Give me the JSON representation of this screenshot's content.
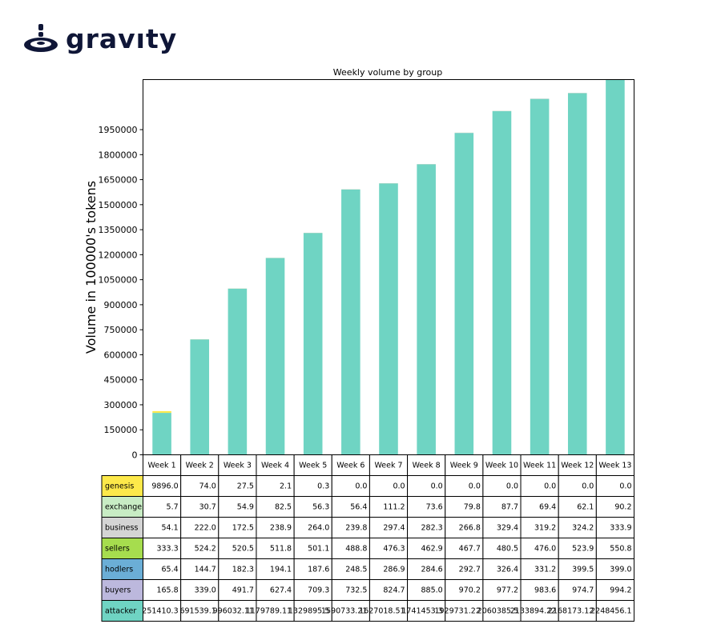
{
  "logo": {
    "text": "gravıty",
    "icon": "gravity-logo-icon"
  },
  "colors": {
    "attacker": "#6fd4c3",
    "genesis": "#fde94a",
    "grid": "#000000"
  },
  "chart_data": {
    "type": "bar",
    "title": "Weekly volume by group",
    "ylabel": "Volume in 100000's tokens",
    "xlabel": "",
    "ylim": [
      0,
      2250000
    ],
    "yticks": [
      0,
      150000,
      300000,
      450000,
      600000,
      750000,
      900000,
      1050000,
      1200000,
      1350000,
      1500000,
      1650000,
      1800000,
      1950000
    ],
    "categories": [
      "Week 1",
      "Week 2",
      "Week 3",
      "Week 4",
      "Week 5",
      "Week 6",
      "Week 7",
      "Week 8",
      "Week 9",
      "Week 10",
      "Week 11",
      "Week 12",
      "Week 13"
    ],
    "series": [
      {
        "name": "genesis",
        "color": "#fde94a",
        "values": [
          9896.0,
          74.0,
          27.5,
          2.1,
          0.3,
          0.0,
          0.0,
          0.0,
          0.0,
          0.0,
          0.0,
          0.0,
          0.0
        ]
      },
      {
        "name": "exchange",
        "color": "#c8ecc4",
        "values": [
          5.7,
          30.7,
          54.9,
          82.5,
          56.3,
          56.4,
          111.2,
          73.6,
          79.8,
          87.7,
          69.4,
          62.1,
          90.2
        ]
      },
      {
        "name": "business",
        "color": "#d4d4d4",
        "values": [
          54.1,
          222.0,
          172.5,
          238.9,
          264.0,
          239.8,
          297.4,
          282.3,
          266.8,
          329.4,
          319.2,
          324.2,
          333.9
        ]
      },
      {
        "name": "sellers",
        "color": "#a6dd4e",
        "values": [
          333.3,
          524.2,
          520.5,
          511.8,
          501.1,
          488.8,
          476.3,
          462.9,
          467.7,
          480.5,
          476.0,
          523.9,
          550.8
        ]
      },
      {
        "name": "hodlers",
        "color": "#6baed6",
        "values": [
          65.4,
          144.7,
          182.3,
          194.1,
          187.6,
          248.5,
          286.9,
          284.6,
          292.7,
          326.4,
          331.2,
          399.5,
          399.0
        ]
      },
      {
        "name": "buyers",
        "color": "#bcb8dd",
        "values": [
          165.8,
          339.0,
          491.7,
          627.4,
          709.3,
          732.5,
          824.7,
          885.0,
          970.2,
          977.2,
          983.6,
          974.7,
          994.2
        ]
      },
      {
        "name": "attacker",
        "color": "#6fd4c3",
        "values": [
          251410.3,
          691539.1,
          996032.11,
          1179789.11,
          1329895.5,
          1590733.21,
          1627018.51,
          1741453.3,
          1929731.22,
          2060385.5,
          2133894.22,
          2168173.12,
          2248456.1
        ]
      }
    ],
    "table_cells": [
      [
        "9896.0",
        "74.0",
        "27.5",
        "2.1",
        "0.3",
        "0.0",
        "0.0",
        "0.0",
        "0.0",
        "0.0",
        "0.0",
        "0.0",
        "0.0"
      ],
      [
        "5.7",
        "30.7",
        "54.9",
        "82.5",
        "56.3",
        "56.4",
        "111.2",
        "73.6",
        "79.8",
        "87.7",
        "69.4",
        "62.1",
        "90.2"
      ],
      [
        "54.1",
        "222.0",
        "172.5",
        "238.9",
        "264.0",
        "239.8",
        "297.4",
        "282.3",
        "266.8",
        "329.4",
        "319.2",
        "324.2",
        "333.9"
      ],
      [
        "333.3",
        "524.2",
        "520.5",
        "511.8",
        "501.1",
        "488.8",
        "476.3",
        "462.9",
        "467.7",
        "480.5",
        "476.0",
        "523.9",
        "550.8"
      ],
      [
        "65.4",
        "144.7",
        "182.3",
        "194.1",
        "187.6",
        "248.5",
        "286.9",
        "284.6",
        "292.7",
        "326.4",
        "331.2",
        "399.5",
        "399.0"
      ],
      [
        "165.8",
        "339.0",
        "491.7",
        "627.4",
        "709.3",
        "732.5",
        "824.7",
        "885.0",
        "970.2",
        "977.2",
        "983.6",
        "974.7",
        "994.2"
      ],
      [
        "251410.3",
        "691539.1",
        "996032.11",
        "1179789.11",
        "1329895.5",
        "1590733.21",
        "1627018.51",
        "1741453.3",
        "1929731.22",
        "2060385.5",
        "2133894.22",
        "2168173.12",
        "2248456.1"
      ]
    ],
    "grid": false,
    "legend": "table-below"
  }
}
